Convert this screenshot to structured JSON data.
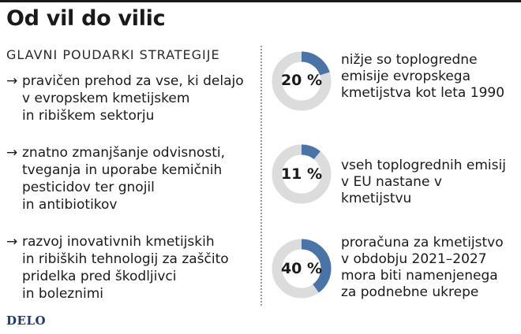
{
  "title": "Od vil do vilic",
  "subtitle": "GLAVNI POUDARKI STRATEGIJE",
  "bullets": [
    "pravičen prehod za vse, ki delajo\nv evropskem kmetijskem\nin ribiškem sektorju",
    "znatno zmanjšanje odvisnosti,\ntveganja in uporabe kemičnih\npesticidov ter gnojil\nin antibiotikov",
    "razvoj inovativnih kmetijskih\nin ribiških tehnologij za zaščito\npridelka pred škodljivci\nin boleznimi"
  ],
  "arrow": "→",
  "logo": "DELO",
  "colors": {
    "fill": "#4a74a8",
    "track": "#dcdcdc"
  },
  "chart_data": [
    {
      "type": "pie",
      "value": 20,
      "label": "20 %",
      "text": "nižje so toplogredne\nemisije evropskega\nkmetijstva kot leta 1990"
    },
    {
      "type": "pie",
      "value": 11,
      "label": "11 %",
      "text": "vseh toplogrednih emisij\nv EU nastane v kmetijstvu"
    },
    {
      "type": "pie",
      "value": 40,
      "label": "40 %",
      "text": "proračuna za kmetijstvo\nv obdobju 2021–2027\nmora biti namenjenega\nza podnebne ukrepe"
    }
  ]
}
